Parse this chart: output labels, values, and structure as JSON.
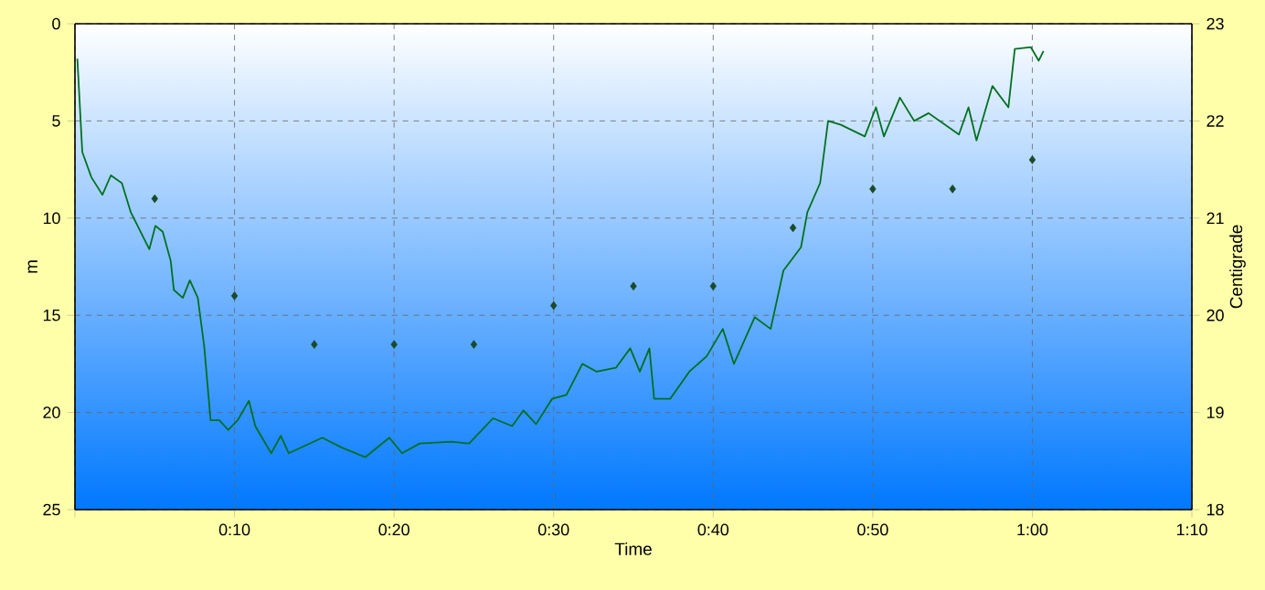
{
  "chart_data": {
    "type": "line",
    "xlabel": "Time",
    "ylabel": "m",
    "y2label": "Centigrade",
    "xlim": [
      0,
      70
    ],
    "xticks": [
      {
        "value": 0,
        "label": null
      },
      {
        "value": 10,
        "label": "0:10"
      },
      {
        "value": 20,
        "label": "0:20"
      },
      {
        "value": 30,
        "label": "0:30"
      },
      {
        "value": 40,
        "label": "0:40"
      },
      {
        "value": 50,
        "label": "0:50"
      },
      {
        "value": 60,
        "label": "1:00"
      },
      {
        "value": 70,
        "label": "1:10"
      }
    ],
    "ylim": [
      25,
      0
    ],
    "yticks": [
      0,
      5,
      10,
      15,
      20,
      25
    ],
    "y2lim": [
      18,
      23
    ],
    "y2ticks": [
      18,
      19,
      20,
      21,
      22,
      23
    ],
    "grid": true,
    "series": [
      {
        "color": "#007020",
        "marker": "none",
        "line_style": "solid",
        "x": [
          0.15,
          0.46,
          1.03,
          1.72,
          2.25,
          2.94,
          3.5,
          4.66,
          5.04,
          5.5,
          6.0,
          6.2,
          6.76,
          7.2,
          7.7,
          8.1,
          8.5,
          9.05,
          9.6,
          10.2,
          10.9,
          11.3,
          12.3,
          12.9,
          13.4,
          15.5,
          16.7,
          18.2,
          19.7,
          20.5,
          21.6,
          23.6,
          24.7,
          26.2,
          27.4,
          28.1,
          28.9,
          29.9,
          30.8,
          31.8,
          32.7,
          33.9,
          34.8,
          35.4,
          36.0,
          36.3,
          37.3,
          38.5,
          39.6,
          40.6,
          41.3,
          42.6,
          43.6,
          44.4,
          45.5,
          45.9,
          46.7,
          47.2,
          48.0,
          49.5,
          50.2,
          50.7,
          51.7,
          52.6,
          53.5,
          55.4,
          56.0,
          56.5,
          57.5,
          58.5,
          58.9,
          59.9,
          60.4,
          60.7
        ],
        "values": [
          1.8,
          6.6,
          7.9,
          8.8,
          7.8,
          8.2,
          9.7,
          11.6,
          10.4,
          10.7,
          12.2,
          13.7,
          14.1,
          13.2,
          14.1,
          16.6,
          20.4,
          20.4,
          20.9,
          20.4,
          19.4,
          20.7,
          22.1,
          21.2,
          22.1,
          21.3,
          21.8,
          22.3,
          21.3,
          22.1,
          21.6,
          21.5,
          21.6,
          20.3,
          20.7,
          19.9,
          20.6,
          19.3,
          19.1,
          17.5,
          17.9,
          17.7,
          16.7,
          17.9,
          16.7,
          19.3,
          19.3,
          17.9,
          17.1,
          15.7,
          17.5,
          15.1,
          15.7,
          12.7,
          11.5,
          9.7,
          8.2,
          5.0,
          5.2,
          5.8,
          4.3,
          5.8,
          3.8,
          5.0,
          4.6,
          5.7,
          4.3,
          6.0,
          3.2,
          4.3,
          1.3,
          1.2,
          1.9,
          1.4
        ]
      },
      {
        "type": "scatter",
        "axis": "y2",
        "color": "#1a4a2a",
        "marker": "diamond",
        "x": [
          5,
          10,
          15,
          20,
          25,
          30,
          35,
          40,
          45,
          50,
          55,
          60
        ],
        "values": [
          21.2,
          20.2,
          19.7,
          19.7,
          19.7,
          20.1,
          20.3,
          20.3,
          20.9,
          21.3,
          21.3,
          21.6
        ]
      }
    ]
  }
}
